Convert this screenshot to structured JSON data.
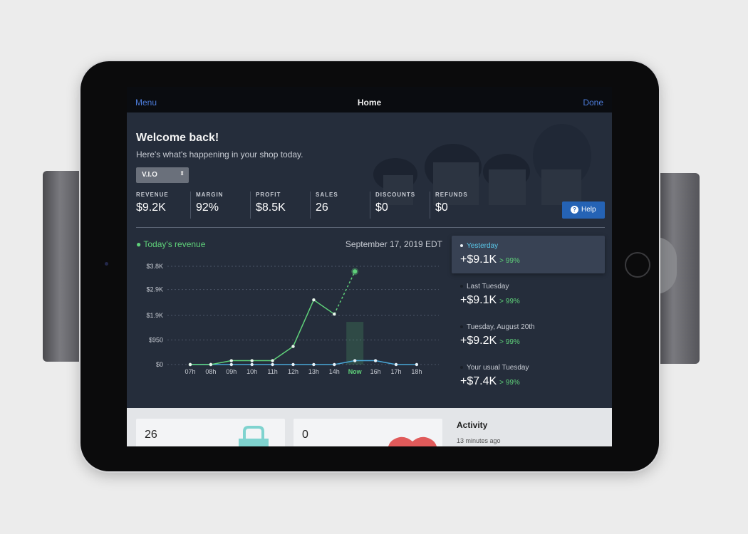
{
  "navbar": {
    "menu_label": "Menu",
    "title": "Home",
    "done_label": "Done"
  },
  "header": {
    "welcome": "Welcome back!",
    "subtitle": "Here's what's happening in your shop today.",
    "store_select": "V.I.O",
    "help_label": "Help"
  },
  "metrics": [
    {
      "label": "REVENUE",
      "value": "$9.2K"
    },
    {
      "label": "MARGIN",
      "value": "92%"
    },
    {
      "label": "PROFIT",
      "value": "$8.5K"
    },
    {
      "label": "SALES",
      "value": "26"
    },
    {
      "label": "DISCOUNTS",
      "value": "$0"
    },
    {
      "label": "REFUNDS",
      "value": "$0"
    }
  ],
  "chart_header": {
    "title": "Today's revenue",
    "date": "September 17, 2019 EDT"
  },
  "chart_data": {
    "type": "line",
    "categories": [
      "07h",
      "08h",
      "09h",
      "10h",
      "11h",
      "12h",
      "13h",
      "14h",
      "Now",
      "16h",
      "17h",
      "18h"
    ],
    "y_tick_labels": [
      "$0",
      "$950",
      "$1.9K",
      "$2.9K",
      "$3.8K"
    ],
    "y_ticks": [
      0,
      950,
      1900,
      2900,
      3800
    ],
    "ylim": [
      0,
      3800
    ],
    "current_index": 8,
    "series": [
      {
        "color": "#5fd17a",
        "values": [
          0,
          0,
          150,
          150,
          150,
          700,
          2500,
          1950,
          3600,
          null,
          null,
          null
        ],
        "projected_from_index": 7
      },
      {
        "color": "#4aa8d8",
        "values": [
          0,
          0,
          0,
          0,
          0,
          0,
          0,
          0,
          150,
          150,
          0,
          0
        ]
      }
    ],
    "grid": true
  },
  "compare": [
    {
      "name": "Yesterday",
      "amount": "+$9.1K",
      "pct": "> 99%",
      "active": true
    },
    {
      "name": "Last Tuesday",
      "amount": "+$9.1K",
      "pct": "> 99%",
      "active": false
    },
    {
      "name": "Tuesday, August 20th",
      "amount": "+$9.2K",
      "pct": "> 99%",
      "active": false
    },
    {
      "name": "Your usual Tuesday",
      "amount": "+$7.4K",
      "pct": "> 99%",
      "active": false
    }
  ],
  "bottom": {
    "card1_value": "26",
    "card2_value": "0",
    "activity_title": "Activity",
    "activity_time": "13 minutes ago"
  },
  "colors": {
    "accent_green": "#5fd17a",
    "accent_blue": "#2563b5",
    "link_blue": "#4c7bd9",
    "cyan": "#5ac8ea"
  }
}
